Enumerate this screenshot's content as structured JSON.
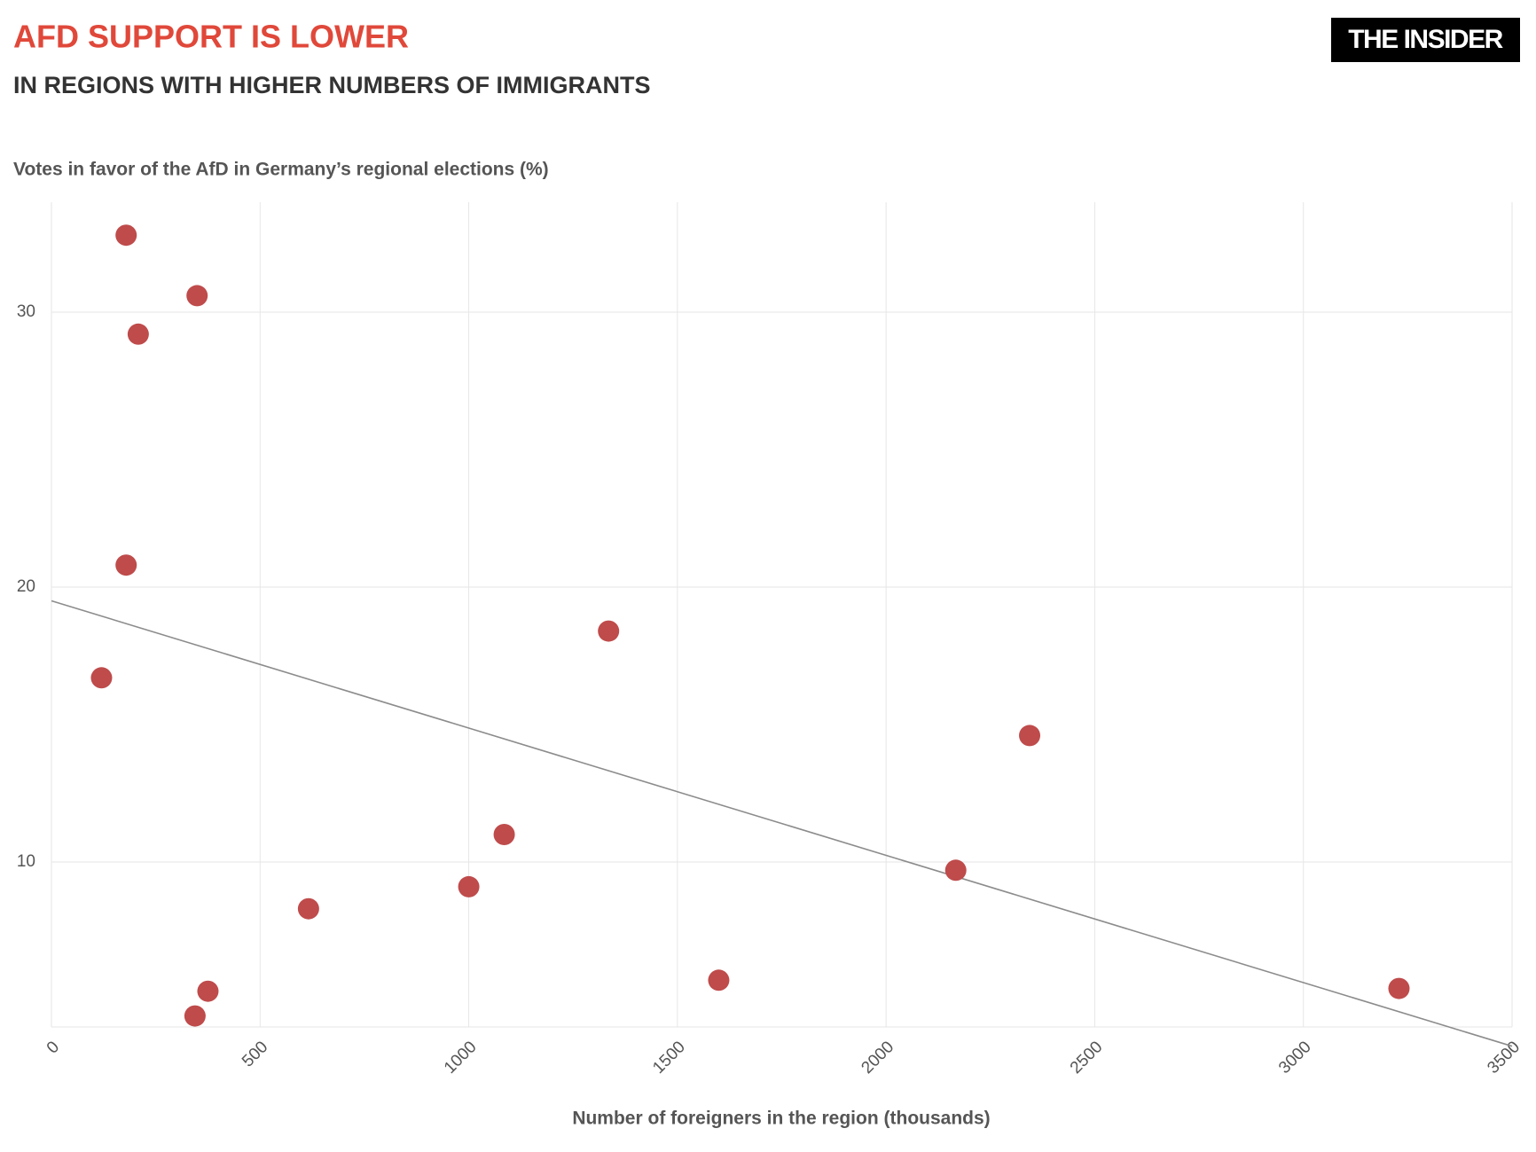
{
  "chart_data": {
    "type": "scatter",
    "title": "AFD SUPPORT IS LOWER",
    "subtitle": "IN REGIONS WITH HIGHER NUMBERS OF IMMIGRANTS",
    "y_label": "Votes in favor of the AfD in Germany’s regional elections (%)",
    "x_label": "Number of foreigners in the region (thousands)",
    "brand": "THE INSIDER",
    "series": [
      {
        "color": "#bf4b4b",
        "x": [
          179,
          349,
          208,
          179,
          120,
          1335,
          2344,
          1085,
          2167,
          1000,
          616,
          375,
          344,
          1599,
          3229
        ],
        "values": [
          32.8,
          30.6,
          29.2,
          20.8,
          16.7,
          18.4,
          14.6,
          11.0,
          9.7,
          9.1,
          8.3,
          5.3,
          4.4,
          5.7,
          5.4
        ]
      }
    ],
    "trendline": {
      "color": "#8c8c8c",
      "x": [
        0,
        3500
      ],
      "values": [
        19.5,
        3.3
      ]
    },
    "xlim": [
      0,
      3500
    ],
    "xticks": [
      0,
      500,
      1000,
      1500,
      2000,
      2500,
      3000,
      3500
    ],
    "ylim": [
      4,
      34
    ],
    "yticks": [
      10,
      20,
      30
    ],
    "grid": true
  }
}
